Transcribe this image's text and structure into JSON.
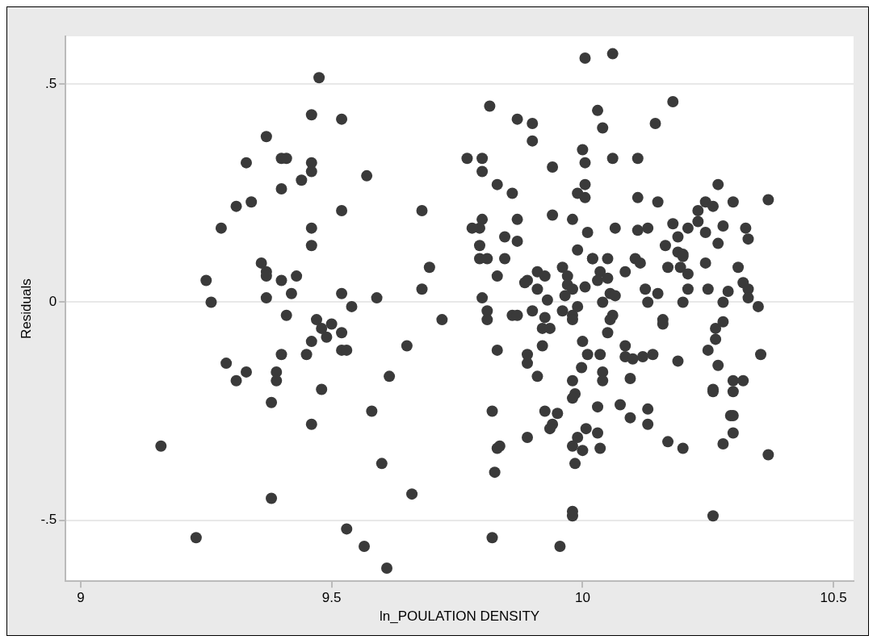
{
  "chart_data": {
    "type": "scatter",
    "xlabel": "ln_POULATION DENSITY",
    "ylabel": "Residuals",
    "xlim": [
      8.97,
      10.54
    ],
    "ylim": [
      -0.64,
      0.61
    ],
    "xticks": [
      9,
      9.5,
      10,
      10.5
    ],
    "yticks": [
      {
        "value": -0.5,
        "label": "-.5"
      },
      0,
      {
        "value": 0.5,
        "label": ".5"
      }
    ],
    "grid": "y",
    "legend": false,
    "marker": "circle",
    "series": [
      {
        "color": "#3a3a3a",
        "x": [
          9.475,
          9.46,
          9.37,
          9.4,
          9.41,
          9.33,
          9.46,
          9.46,
          9.44,
          9.4,
          9.31,
          9.34,
          9.28,
          9.46,
          9.46,
          9.36,
          9.37,
          9.37,
          9.4,
          9.43,
          9.25,
          9.42,
          9.26,
          9.37,
          9.41,
          9.47,
          9.5,
          9.48,
          9.49,
          9.46,
          9.45,
          9.4,
          9.29,
          9.33,
          9.31,
          9.39,
          9.39,
          9.48,
          9.38,
          9.46,
          9.16,
          9.38,
          9.23,
          10.005,
          9.815,
          9.87,
          9.9,
          9.9,
          9.52,
          9.77,
          9.8,
          9.8,
          9.83,
          9.86,
          9.94,
          10,
          10.005,
          9.57,
          9.52,
          9.68,
          10.005,
          9.99,
          10.005,
          9.8,
          9.795,
          9.78,
          9.87,
          9.94,
          9.98,
          10.01,
          9.845,
          9.87,
          9.795,
          9.795,
          9.81,
          9.845,
          9.99,
          10.02,
          9.695,
          9.83,
          9.96,
          9.91,
          9.925,
          9.89,
          9.885,
          9.91,
          9.97,
          9.97,
          9.98,
          9.965,
          10.005,
          9.93,
          9.68,
          9.52,
          9.59,
          9.8,
          9.54,
          9.52,
          9.52,
          9.53,
          9.72,
          9.65,
          9.615,
          9.58,
          9.6,
          9.66,
          9.53,
          9.565,
          9.61,
          9.81,
          9.81,
          9.86,
          9.87,
          9.9,
          9.925,
          9.92,
          9.935,
          9.96,
          9.98,
          9.98,
          9.99,
          9.83,
          9.92,
          9.89,
          9.89,
          9.91,
          10,
          10.01,
          9.998,
          9.98,
          9.985,
          9.98,
          9.82,
          9.925,
          9.95,
          9.94,
          9.935,
          9.89,
          10.007,
          9.99,
          9.98,
          10,
          9.985,
          9.835,
          9.83,
          9.825,
          9.98,
          9.98,
          9.82,
          9.955,
          10.06,
          10.18,
          10.03,
          10.145,
          10.04,
          10.06,
          10.11,
          10.27,
          10.11,
          10.15,
          10.245,
          10.26,
          10.3,
          10.37,
          10.23,
          10.23,
          10.18,
          10.065,
          10.11,
          10.13,
          10.21,
          10.28,
          10.325,
          10.33,
          10.245,
          10.19,
          10.165,
          10.27,
          10.19,
          10.2,
          10.2,
          10.02,
          10.05,
          10.105,
          10.115,
          10.245,
          10.31,
          10.17,
          10.035,
          10.03,
          10.05,
          10.085,
          10.195,
          10.21,
          10.32,
          10.33,
          10.33,
          10.055,
          10.065,
          10.125,
          10.15,
          10.21,
          10.25,
          10.29,
          10.04,
          10.13,
          10.2,
          10.28,
          10.35,
          10.06,
          10.055,
          10.05,
          10.16,
          10.16,
          10.265,
          10.28,
          10.265,
          10.25,
          10.355,
          10.27,
          10.085,
          10.035,
          10.085,
          10.1,
          10.12,
          10.14,
          10.19,
          10.04,
          10.04,
          10.095,
          10.3,
          10.32,
          10.26,
          10.26,
          10.3,
          10.03,
          10.075,
          10.095,
          10.13,
          10.13,
          10.03,
          10.035,
          10.295,
          10.3,
          10.3,
          10.28,
          10.17,
          10.2,
          10.37,
          10.26
        ],
        "values": [
          0.515,
          0.43,
          0.38,
          0.33,
          0.33,
          0.32,
          0.32,
          0.3,
          0.28,
          0.26,
          0.22,
          0.23,
          0.17,
          0.17,
          0.13,
          0.09,
          0.07,
          0.06,
          0.05,
          0.06,
          0.05,
          0.02,
          0,
          0.01,
          -0.03,
          -0.04,
          -0.05,
          -0.06,
          -0.08,
          -0.09,
          -0.12,
          -0.12,
          -0.14,
          -0.16,
          -0.18,
          -0.16,
          -0.18,
          -0.2,
          -0.23,
          -0.28,
          -0.33,
          -0.45,
          -0.54,
          0.56,
          0.45,
          0.42,
          0.41,
          0.37,
          0.42,
          0.33,
          0.33,
          0.3,
          0.27,
          0.25,
          0.31,
          0.35,
          0.32,
          0.29,
          0.21,
          0.21,
          0.27,
          0.25,
          0.24,
          0.19,
          0.17,
          0.17,
          0.19,
          0.2,
          0.19,
          0.16,
          0.15,
          0.14,
          0.13,
          0.1,
          0.1,
          0.1,
          0.12,
          0.1,
          0.08,
          0.06,
          0.08,
          0.07,
          0.06,
          0.05,
          0.045,
          0.03,
          0.06,
          0.04,
          0.03,
          0.015,
          0.035,
          0.005,
          0.03,
          0.02,
          0.01,
          0.01,
          -0.01,
          -0.07,
          -0.11,
          -0.11,
          -0.04,
          -0.1,
          -0.17,
          -0.25,
          -0.37,
          -0.44,
          -0.52,
          -0.56,
          -0.61,
          -0.02,
          -0.04,
          -0.03,
          -0.03,
          -0.02,
          -0.035,
          -0.06,
          -0.06,
          -0.02,
          -0.03,
          -0.04,
          -0.01,
          -0.11,
          -0.1,
          -0.12,
          -0.14,
          -0.17,
          -0.09,
          -0.12,
          -0.15,
          -0.18,
          -0.21,
          -0.22,
          -0.25,
          -0.25,
          -0.255,
          -0.28,
          -0.29,
          -0.31,
          -0.29,
          -0.31,
          -0.33,
          -0.34,
          -0.37,
          -0.33,
          -0.335,
          -0.39,
          -0.48,
          -0.49,
          -0.54,
          -0.56,
          0.57,
          0.46,
          0.44,
          0.41,
          0.4,
          0.33,
          0.33,
          0.27,
          0.24,
          0.23,
          0.23,
          0.22,
          0.23,
          0.235,
          0.21,
          0.185,
          0.18,
          0.17,
          0.165,
          0.17,
          0.17,
          0.175,
          0.17,
          0.145,
          0.16,
          0.15,
          0.13,
          0.135,
          0.115,
          0.11,
          0.105,
          0.1,
          0.1,
          0.1,
          0.09,
          0.09,
          0.08,
          0.08,
          0.07,
          0.05,
          0.055,
          0.07,
          0.08,
          0.065,
          0.045,
          0.03,
          0.01,
          0.02,
          0.015,
          0.03,
          0.02,
          0.03,
          0.03,
          0.025,
          0,
          0,
          0,
          0,
          -0.01,
          -0.03,
          -0.04,
          -0.07,
          -0.04,
          -0.05,
          -0.06,
          -0.045,
          -0.085,
          -0.11,
          -0.12,
          -0.145,
          -0.1,
          -0.12,
          -0.125,
          -0.13,
          -0.125,
          -0.12,
          -0.135,
          -0.16,
          -0.18,
          -0.175,
          -0.18,
          -0.18,
          -0.2,
          -0.205,
          -0.205,
          -0.24,
          -0.235,
          -0.265,
          -0.245,
          -0.28,
          -0.3,
          -0.335,
          -0.26,
          -0.26,
          -0.3,
          -0.325,
          -0.32,
          -0.335,
          -0.35,
          -0.49
        ]
      }
    ]
  }
}
